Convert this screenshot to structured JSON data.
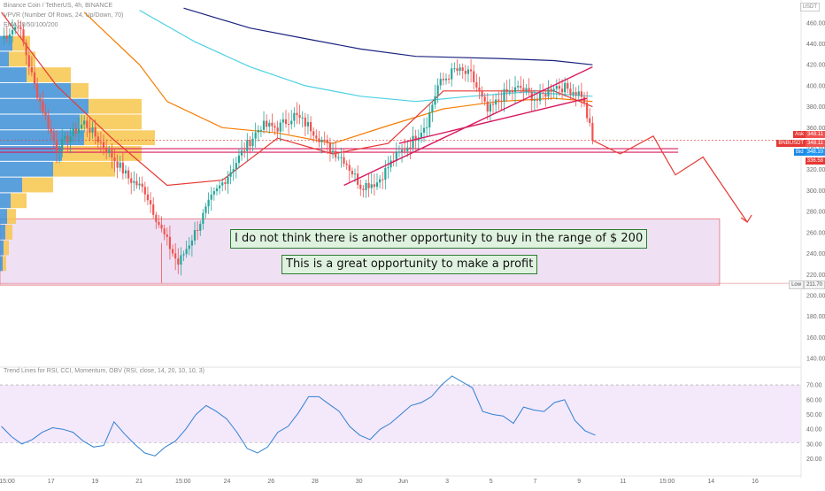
{
  "header": {
    "symbol_line": "Binance Coin / TetherUS, 4h, BINANCE",
    "vpvr_line": "VPVR (Number Of Rows, 24, Up/Down, 70)",
    "ema_line": "EMA 20/50/100/200",
    "currency": "USDT"
  },
  "price_scale": {
    "ticks": [
      "460.00",
      "440.00",
      "420.00",
      "400.00",
      "380.00",
      "360.00",
      "340.00",
      "320.00",
      "300.00",
      "280.00",
      "260.00",
      "240.00",
      "220.00",
      "200.00",
      "180.00",
      "160.00",
      "140.00"
    ]
  },
  "rsi_scale": {
    "ticks": [
      "70.00",
      "60.00",
      "50.00",
      "40.00",
      "30.00",
      "20.00"
    ]
  },
  "time_axis": {
    "ticks": [
      "15:00",
      "17",
      "19",
      "21",
      "15:00",
      "24",
      "26",
      "28",
      "30",
      "Jun",
      "3",
      "5",
      "7",
      "9",
      "11",
      "15:00",
      "14",
      "16"
    ]
  },
  "price_tags": {
    "ask_label": "Ask",
    "ask_value": "348.11",
    "sym_label": "BNBUSDT",
    "sym_value": "348.11",
    "bid_label": "Bid",
    "bid_value": "348.10",
    "level_value": "336.58",
    "low_label": "Low",
    "low_value": "211.70"
  },
  "annotations": {
    "line1": "I do not think there is another opportunity to buy in the range of $ 200",
    "line2": "This is a great opportunity to make a profit"
  },
  "indicator": {
    "title": "Trend Lines for RSI, CCI, Momentum, OBV (RSI, close, 14, 20, 10, 10, 3)"
  },
  "colors": {
    "up": "#26a69a",
    "down": "#ef5350",
    "ema20": "#e53935",
    "ema50": "#f57c00",
    "ema100": "#4dd0e1",
    "ema200": "#1a237e",
    "rsi": "#2f80d1",
    "zone": "#e9d6f0",
    "projection": "#e53935"
  },
  "chart_data": [
    {
      "type": "candlestick",
      "symbol": "BNBUSDT",
      "interval": "4h",
      "ylim": [
        200,
        475
      ],
      "segments": [
        [
          0,
          445,
          458
        ],
        [
          6,
          460,
          400
        ],
        [
          12,
          400,
          340
        ],
        [
          20,
          340,
          365
        ],
        [
          30,
          365,
          333
        ],
        [
          40,
          333,
          312
        ],
        [
          46,
          312,
          300
        ],
        [
          52,
          300,
          262
        ],
        [
          58,
          262,
          230
        ],
        [
          64,
          230,
          260
        ],
        [
          70,
          260,
          292
        ],
        [
          76,
          292,
          315
        ],
        [
          82,
          315,
          340
        ],
        [
          88,
          340,
          362
        ],
        [
          94,
          362,
          360
        ],
        [
          100,
          360,
          372
        ],
        [
          106,
          372,
          360
        ],
        [
          112,
          360,
          342
        ],
        [
          118,
          342,
          330
        ],
        [
          124,
          330,
          305
        ],
        [
          130,
          305,
          308
        ],
        [
          136,
          308,
          330
        ],
        [
          142,
          330,
          345
        ],
        [
          148,
          345,
          365
        ],
        [
          154,
          365,
          400
        ],
        [
          158,
          400,
          415
        ],
        [
          164,
          415,
          410
        ],
        [
          170,
          410,
          375
        ],
        [
          176,
          375,
          392
        ],
        [
          182,
          392,
          398
        ],
        [
          188,
          398,
          386
        ],
        [
          194,
          386,
          400
        ],
        [
          200,
          400,
          398
        ],
        [
          204,
          398,
          392
        ],
        [
          210,
          392,
          350
        ],
        [
          214,
          350,
          348
        ]
      ],
      "low": 211.7,
      "last": 348.11,
      "ask": 348.11,
      "bid": 348.1,
      "support_level": 336.58,
      "ema": {
        "ema20": [
          [
            0,
            470
          ],
          [
            20,
            400
          ],
          [
            40,
            350
          ],
          [
            60,
            305
          ],
          [
            80,
            310
          ],
          [
            100,
            350
          ],
          [
            120,
            335
          ],
          [
            140,
            345
          ],
          [
            160,
            395
          ],
          [
            180,
            395
          ],
          [
            200,
            395
          ],
          [
            214,
            380
          ]
        ],
        "ema50": [
          [
            30,
            470
          ],
          [
            50,
            420
          ],
          [
            60,
            385
          ],
          [
            80,
            360
          ],
          [
            100,
            355
          ],
          [
            120,
            345
          ],
          [
            140,
            362
          ],
          [
            160,
            378
          ],
          [
            180,
            385
          ],
          [
            200,
            388
          ],
          [
            214,
            385
          ]
        ],
        "ema100": [
          [
            50,
            472
          ],
          [
            70,
            442
          ],
          [
            90,
            418
          ],
          [
            110,
            400
          ],
          [
            130,
            390
          ],
          [
            150,
            385
          ],
          [
            170,
            390
          ],
          [
            190,
            394
          ],
          [
            214,
            390
          ]
        ],
        "ema200": [
          [
            66,
            474
          ],
          [
            90,
            455
          ],
          [
            110,
            445
          ],
          [
            130,
            435
          ],
          [
            150,
            428
          ],
          [
            180,
            426
          ],
          [
            200,
            424
          ],
          [
            214,
            420
          ]
        ]
      },
      "trendlines": [
        {
          "from": [
            124,
            305
          ],
          "to": [
            214,
            418
          ]
        },
        {
          "from": [
            144,
            345
          ],
          "to": [
            212,
            388
          ]
        }
      ],
      "horizontal_lines": [
        340,
        336.58
      ],
      "projection": [
        [
          214,
          348
        ],
        [
          224,
          335
        ],
        [
          236,
          352
        ],
        [
          244,
          315
        ],
        [
          254,
          332
        ],
        [
          270,
          270
        ]
      ],
      "zone": [
        210,
        273
      ]
    },
    {
      "type": "line",
      "name": "RSI",
      "ylim": [
        18,
        76
      ],
      "bands": [
        31,
        70
      ],
      "values": [
        42,
        35,
        30,
        33,
        38,
        41,
        40,
        38,
        32,
        28,
        29,
        45,
        37,
        30,
        24,
        22,
        28,
        32,
        40,
        50,
        56,
        52,
        47,
        38,
        27,
        24,
        28,
        38,
        42,
        51,
        62,
        62,
        57,
        52,
        42,
        36,
        33,
        40,
        44,
        50,
        56,
        58,
        62,
        70,
        76,
        72,
        68,
        52,
        50,
        49,
        44,
        55,
        53,
        52,
        58,
        60,
        46,
        39,
        36
      ]
    }
  ]
}
